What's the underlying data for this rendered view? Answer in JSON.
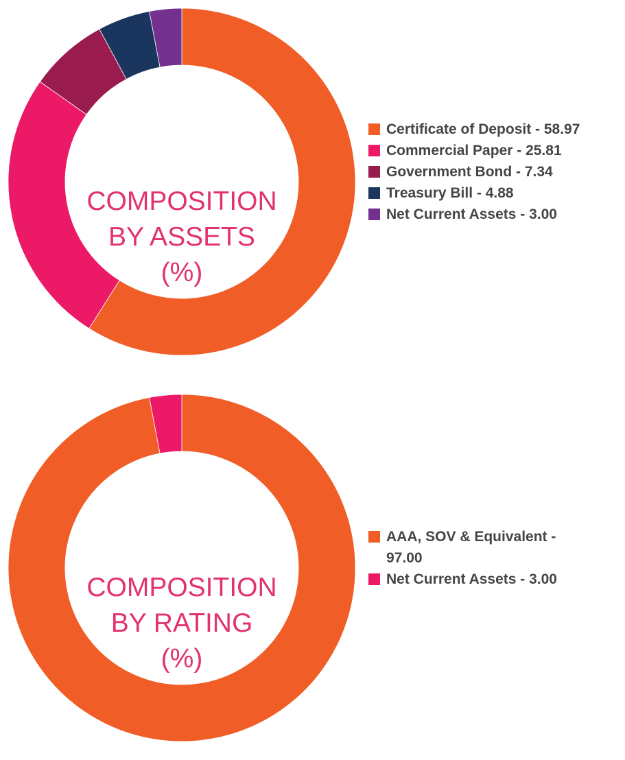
{
  "chart_data": [
    {
      "type": "pie",
      "variant": "donut",
      "title": [
        "COMPOSITION",
        "BY ASSETS",
        "(%)"
      ],
      "slices": [
        {
          "label": "Certificate of Deposit - 58.97",
          "name": "Certificate of Deposit",
          "value": 58.97,
          "color": "#F15D27"
        },
        {
          "label": "Commercial Paper - 25.81",
          "name": "Commercial Paper",
          "value": 25.81,
          "color": "#EC1A66"
        },
        {
          "label": "Government Bond - 7.34",
          "name": "Government Bond",
          "value": 7.34,
          "color": "#9A1B4E"
        },
        {
          "label": "Treasury Bill - 4.88",
          "name": "Treasury Bill",
          "value": 4.88,
          "color": "#1B365E"
        },
        {
          "label": "Net Current Assets - 3.00",
          "name": "Net Current Assets",
          "value": 3.0,
          "color": "#74308F"
        }
      ],
      "legend_position": "right"
    },
    {
      "type": "pie",
      "variant": "donut",
      "title": [
        "COMPOSITION",
        "BY RATING",
        "(%)"
      ],
      "slices": [
        {
          "label": "AAA, SOV & Equivalent - 97.00",
          "name": "AAA, SOV & Equivalent",
          "value": 97.0,
          "color": "#F15D27"
        },
        {
          "label": "Net Current Assets - 3.00",
          "name": "Net Current Assets",
          "value": 3.0,
          "color": "#EC1A66"
        }
      ],
      "legend_position": "right"
    }
  ]
}
